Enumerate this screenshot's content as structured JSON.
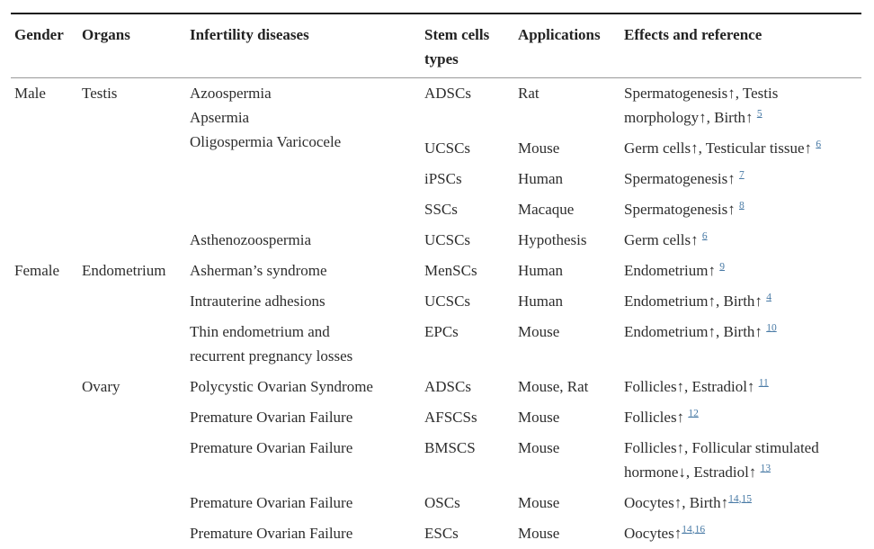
{
  "colors": {
    "text": "#2d2d2d",
    "link": "#4a7ba6",
    "top_rule": "#1c1c1c",
    "header_rule": "#999999",
    "bottom_rule": "#8c8c8c"
  },
  "table": {
    "columns": [
      {
        "label": "Gender"
      },
      {
        "label": "Organs"
      },
      {
        "label": "Infertility diseases"
      },
      {
        "label": "Stem cells types"
      },
      {
        "label": "Applications"
      },
      {
        "label": "Effects and reference"
      }
    ],
    "rows": [
      {
        "cells": [
          {
            "col": "gender",
            "lines": [
              "Male"
            ],
            "rowspan": 5
          },
          {
            "col": "organs",
            "lines": [
              "Testis"
            ],
            "rowspan": 5
          },
          {
            "col": "disease",
            "lines": [
              "Azoospermia",
              "Apsermia",
              "Oligospermia Varicocele"
            ],
            "rowspan": 4
          },
          {
            "col": "stem",
            "lines": [
              "ADSCs"
            ]
          },
          {
            "col": "application",
            "lines": [
              "Rat"
            ]
          },
          {
            "col": "effects",
            "lines": [
              "Spermatogenesis↑, Testis",
              "morphology↑, Birth↑"
            ],
            "sep": " ",
            "refs": [
              "5"
            ]
          }
        ]
      },
      {
        "cells": [
          {
            "col": "stem",
            "lines": [
              "UCSCs"
            ]
          },
          {
            "col": "application",
            "lines": [
              "Mouse"
            ]
          },
          {
            "col": "effects",
            "lines": [
              "Germ cells↑, Testicular tissue↑"
            ],
            "sep": " ",
            "refs": [
              "6"
            ]
          }
        ]
      },
      {
        "cells": [
          {
            "col": "stem",
            "lines": [
              "iPSCs"
            ]
          },
          {
            "col": "application",
            "lines": [
              "Human"
            ]
          },
          {
            "col": "effects",
            "lines": [
              "Spermatogenesis↑"
            ],
            "sep": " ",
            "refs": [
              "7"
            ]
          }
        ]
      },
      {
        "cells": [
          {
            "col": "stem",
            "lines": [
              "SSCs"
            ]
          },
          {
            "col": "application",
            "lines": [
              "Macaque"
            ]
          },
          {
            "col": "effects",
            "lines": [
              "Spermatogenesis↑"
            ],
            "sep": " ",
            "refs": [
              "8"
            ]
          }
        ]
      },
      {
        "cells": [
          {
            "col": "disease",
            "lines": [
              "Asthenozoospermia"
            ]
          },
          {
            "col": "stem",
            "lines": [
              "UCSCs"
            ]
          },
          {
            "col": "application",
            "lines": [
              "Hypothesis"
            ]
          },
          {
            "col": "effects",
            "lines": [
              "Germ cells↑"
            ],
            "sep": " ",
            "refs": [
              "6"
            ]
          }
        ]
      },
      {
        "cells": [
          {
            "col": "gender",
            "lines": [
              "Female"
            ],
            "rowspan": 8
          },
          {
            "col": "organs",
            "lines": [
              "Endometrium"
            ],
            "rowspan": 3
          },
          {
            "col": "disease",
            "lines": [
              "Asherman’s syndrome"
            ]
          },
          {
            "col": "stem",
            "lines": [
              "MenSCs"
            ]
          },
          {
            "col": "application",
            "lines": [
              "Human"
            ]
          },
          {
            "col": "effects",
            "lines": [
              "Endometrium↑"
            ],
            "sep": " ",
            "refs": [
              "9"
            ]
          }
        ]
      },
      {
        "cells": [
          {
            "col": "disease",
            "lines": [
              "Intrauterine adhesions"
            ]
          },
          {
            "col": "stem",
            "lines": [
              "UCSCs"
            ]
          },
          {
            "col": "application",
            "lines": [
              "Human"
            ]
          },
          {
            "col": "effects",
            "lines": [
              "Endometrium↑, Birth↑"
            ],
            "sep": " ",
            "refs": [
              "4"
            ]
          }
        ]
      },
      {
        "cells": [
          {
            "col": "disease",
            "lines": [
              "Thin endometrium and",
              "recurrent pregnancy losses"
            ]
          },
          {
            "col": "stem",
            "lines": [
              "EPCs"
            ]
          },
          {
            "col": "application",
            "lines": [
              "Mouse"
            ]
          },
          {
            "col": "effects",
            "lines": [
              "Endometrium↑, Birth↑"
            ],
            "sep": " ",
            "refs": [
              "10"
            ]
          }
        ]
      },
      {
        "cells": [
          {
            "col": "organs",
            "lines": [
              "Ovary"
            ],
            "rowspan": 5
          },
          {
            "col": "disease",
            "lines": [
              "Polycystic Ovarian Syndrome"
            ]
          },
          {
            "col": "stem",
            "lines": [
              "ADSCs"
            ]
          },
          {
            "col": "application",
            "lines": [
              "Mouse, Rat"
            ]
          },
          {
            "col": "effects",
            "lines": [
              "Follicles↑, Estradiol↑"
            ],
            "sep": " ",
            "refs": [
              "11"
            ]
          }
        ]
      },
      {
        "cells": [
          {
            "col": "disease",
            "lines": [
              "Premature Ovarian Failure"
            ]
          },
          {
            "col": "stem",
            "lines": [
              "AFSCSs"
            ]
          },
          {
            "col": "application",
            "lines": [
              "Mouse"
            ]
          },
          {
            "col": "effects",
            "lines": [
              "Follicles↑"
            ],
            "sep": " ",
            "refs": [
              "12"
            ]
          }
        ]
      },
      {
        "cells": [
          {
            "col": "disease",
            "lines": [
              "Premature Ovarian Failure"
            ]
          },
          {
            "col": "stem",
            "lines": [
              "BMSCS"
            ]
          },
          {
            "col": "application",
            "lines": [
              "Mouse"
            ]
          },
          {
            "col": "effects",
            "lines": [
              "Follicles↑, Follicular stimulated",
              "hormone↓, Estradiol↑"
            ],
            "sep": " ",
            "refs": [
              "13"
            ]
          }
        ]
      },
      {
        "cells": [
          {
            "col": "disease",
            "lines": [
              "Premature Ovarian Failure"
            ]
          },
          {
            "col": "stem",
            "lines": [
              "OSCs"
            ]
          },
          {
            "col": "application",
            "lines": [
              "Mouse"
            ]
          },
          {
            "col": "effects",
            "lines": [
              "Oocytes↑, Birth↑"
            ],
            "sep": "",
            "refs": [
              "14",
              "15"
            ]
          }
        ]
      },
      {
        "cells": [
          {
            "col": "disease",
            "lines": [
              "Premature Ovarian Failure"
            ]
          },
          {
            "col": "stem",
            "lines": [
              "ESCs"
            ]
          },
          {
            "col": "application",
            "lines": [
              "Mouse"
            ]
          },
          {
            "col": "effects",
            "lines": [
              "Oocytes↑"
            ],
            "sep": "",
            "refs": [
              "14",
              "16"
            ]
          }
        ]
      }
    ]
  }
}
